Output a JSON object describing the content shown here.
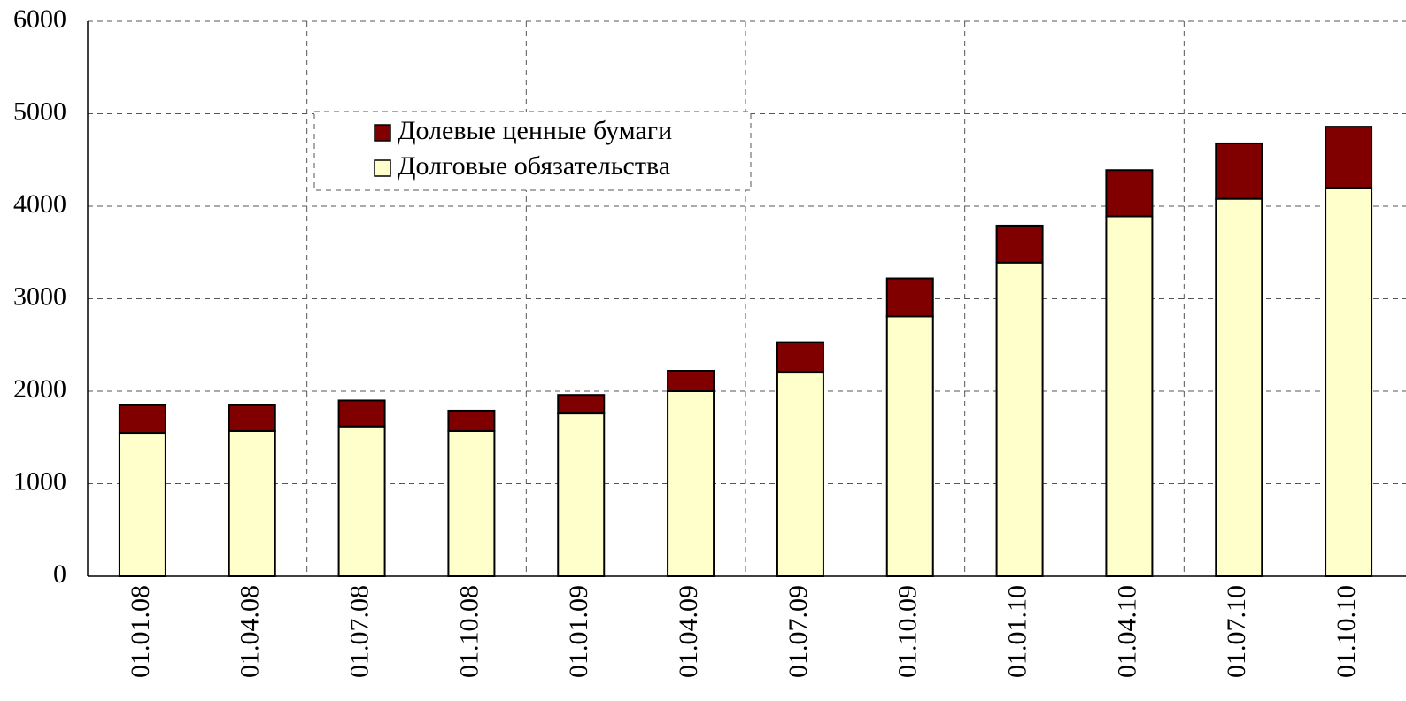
{
  "chart_data": {
    "type": "bar",
    "stacked": true,
    "categories": [
      "01.01.08",
      "01.04.08",
      "01.07.08",
      "01.10.08",
      "01.01.09",
      "01.04.09",
      "01.07.09",
      "01.10.09",
      "01.01.10",
      "01.04.10",
      "01.07.10",
      "01.10.10"
    ],
    "series": [
      {
        "name": "Долговые обязательства",
        "color": "#ffffcc",
        "values": [
          1550,
          1570,
          1620,
          1570,
          1760,
          2000,
          2210,
          2810,
          3390,
          3890,
          4080,
          4200
        ]
      },
      {
        "name": "Долевые ценные бумаги",
        "color": "#800000",
        "values": [
          300,
          280,
          280,
          220,
          200,
          220,
          320,
          410,
          400,
          500,
          600,
          660
        ]
      }
    ],
    "ylim": [
      0,
      6000
    ],
    "yticks": [
      0,
      1000,
      2000,
      3000,
      4000,
      5000,
      6000
    ],
    "grid": true
  }
}
